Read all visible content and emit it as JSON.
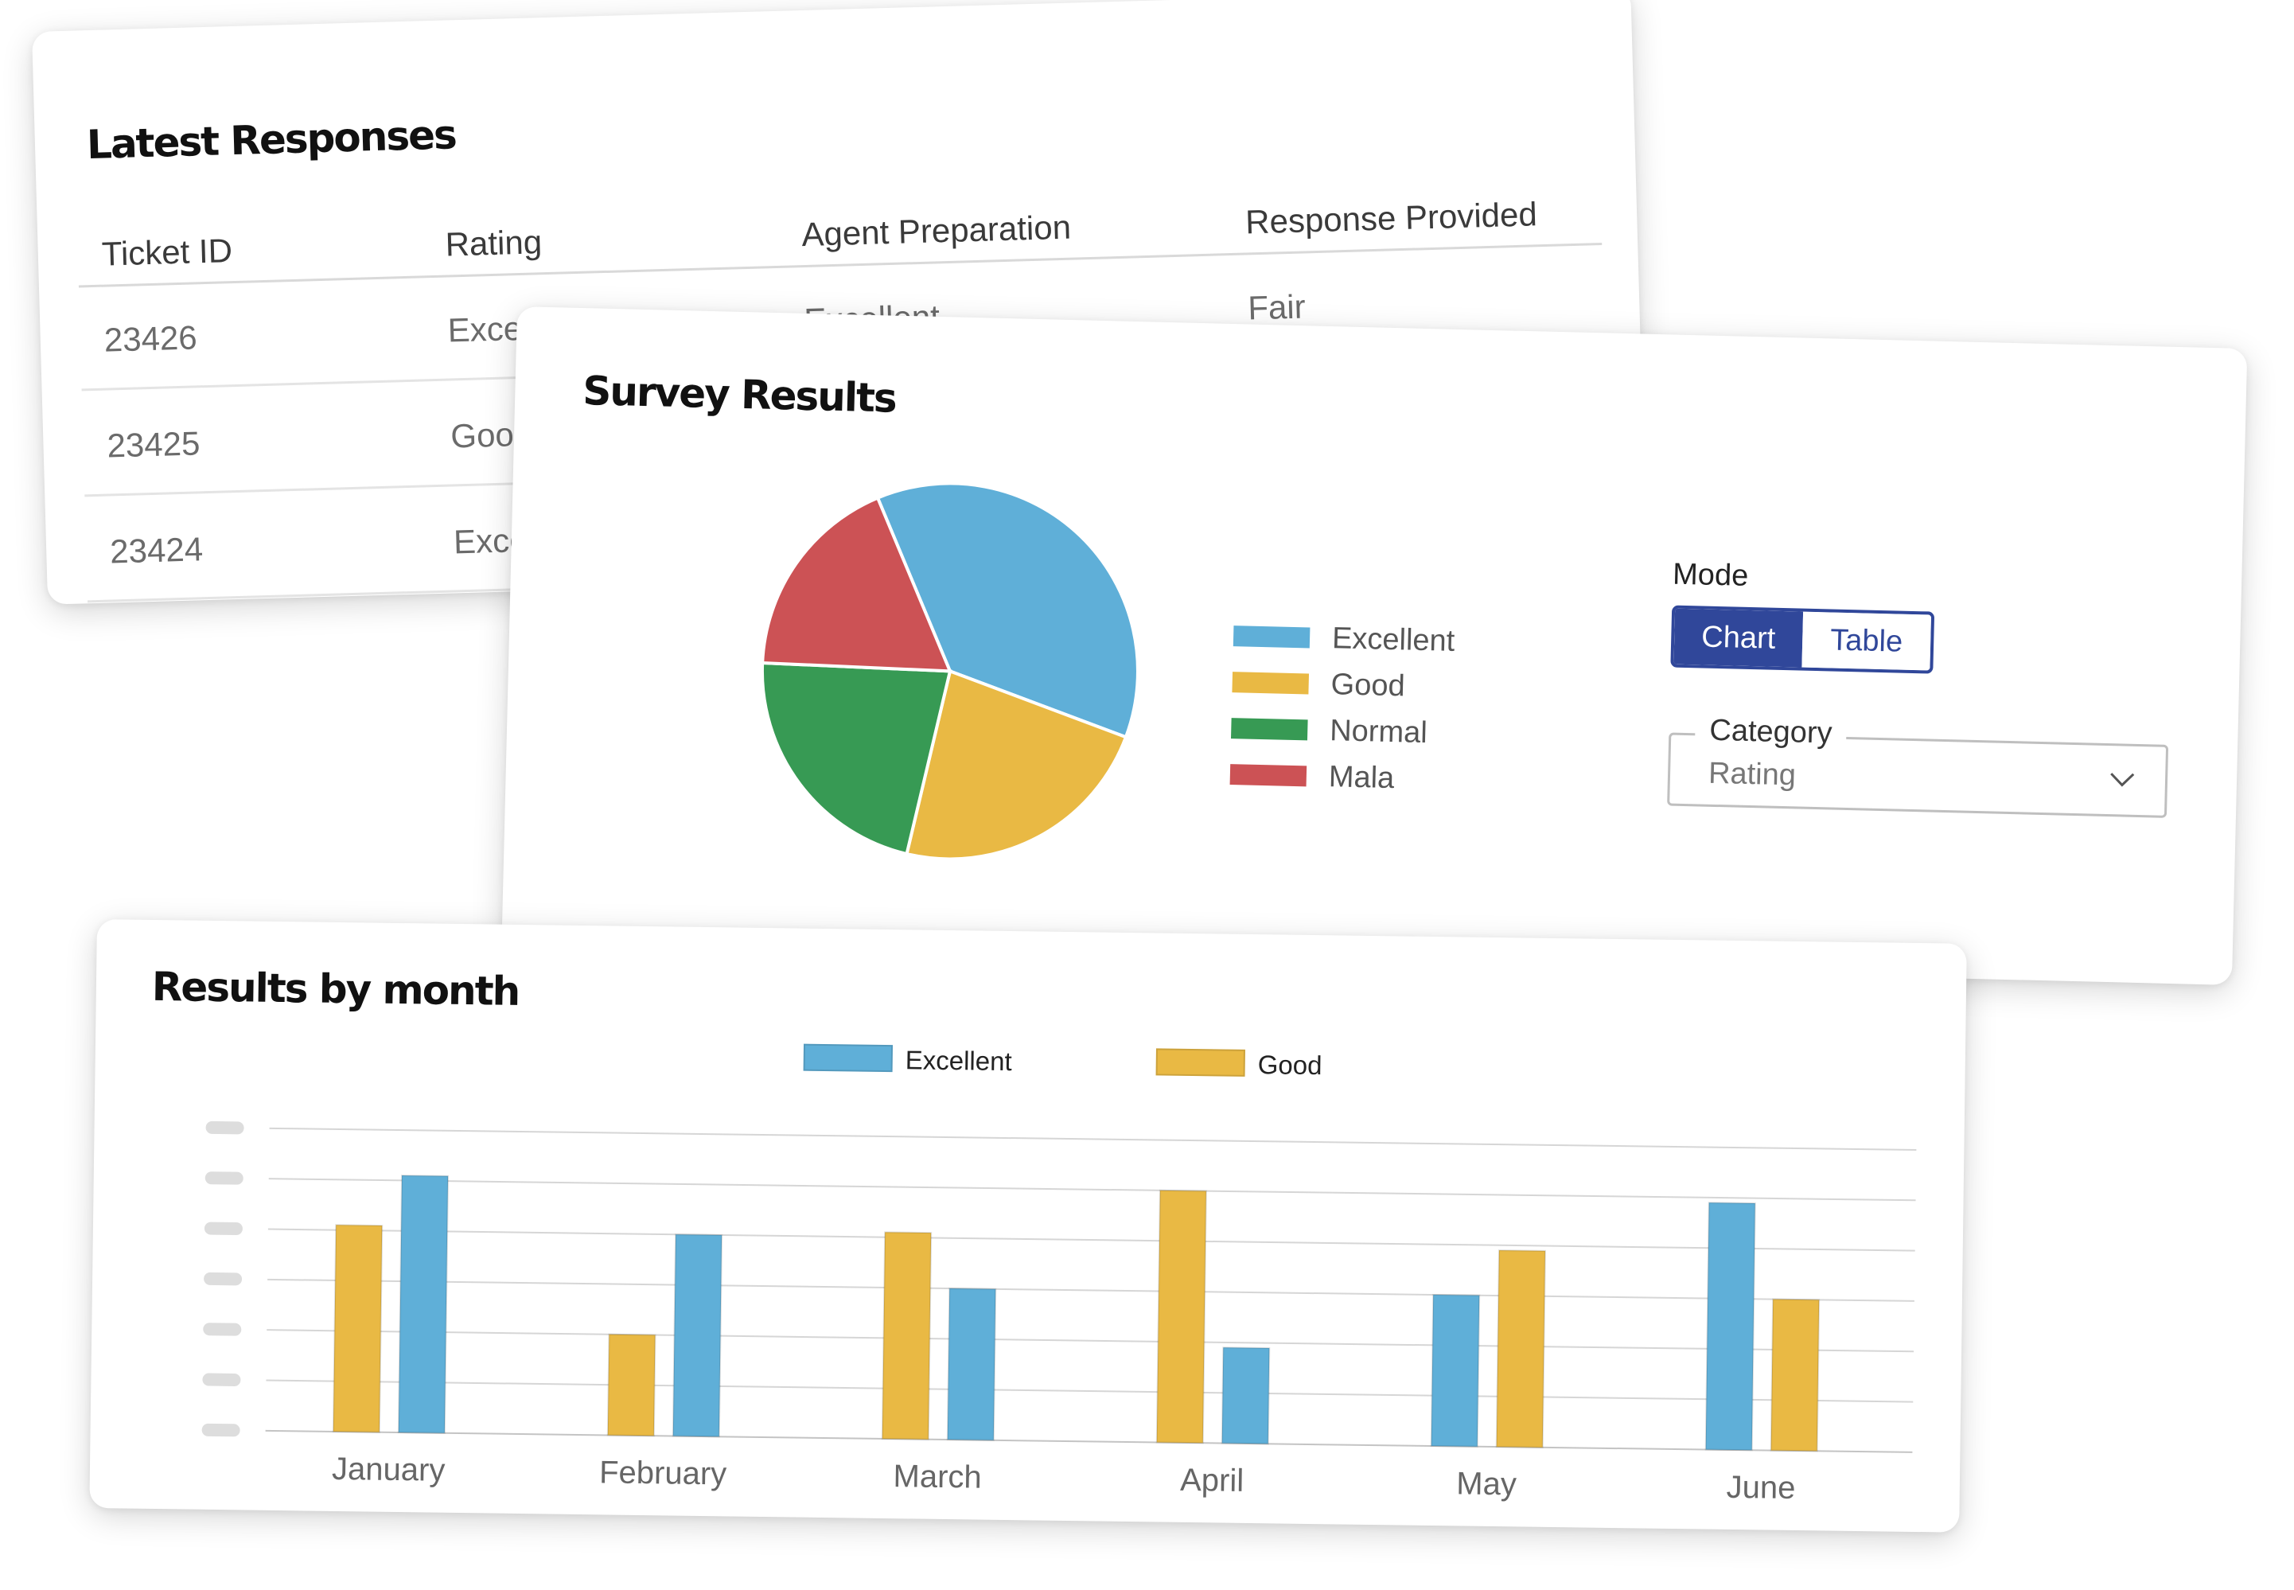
{
  "latest_responses": {
    "title": "Latest Responses",
    "columns": [
      "Ticket ID",
      "Rating",
      "Agent Preparation",
      "Response Provided"
    ],
    "rows": [
      [
        "23426",
        "Excellent",
        "Excellent",
        "Fair"
      ],
      [
        "23425",
        "Good",
        "",
        ""
      ],
      [
        "23424",
        "Excellent",
        "",
        ""
      ]
    ]
  },
  "survey_results": {
    "title": "Survey Results",
    "mode": {
      "label": "Mode",
      "options": [
        "Chart",
        "Table"
      ],
      "selected": "Chart"
    },
    "category": {
      "label": "Category",
      "value": "Rating",
      "icon": "chevron-down-icon"
    },
    "legend": [
      {
        "label": "Excellent",
        "color": "#5fafd8"
      },
      {
        "label": "Good",
        "color": "#e9b944"
      },
      {
        "label": "Normal",
        "color": "#379a54"
      },
      {
        "label": "Mala",
        "color": "#cc5255"
      }
    ]
  },
  "results_by_month": {
    "title": "Results by month",
    "legend": [
      {
        "label": "Excellent",
        "color": "#5fafd8"
      },
      {
        "label": "Good",
        "color": "#e9b944"
      }
    ]
  },
  "chart_data": [
    {
      "type": "pie",
      "labels": [
        "Excellent",
        "Good",
        "Normal",
        "Mala"
      ],
      "values": [
        37,
        23,
        22,
        18
      ],
      "colors": [
        "#5fafd8",
        "#e9b944",
        "#379a54",
        "#cc5255"
      ]
    },
    {
      "type": "bar",
      "categories": [
        "January",
        "February",
        "March",
        "April",
        "May",
        "June"
      ],
      "series": [
        {
          "name": "Good",
          "color": "#e9b944",
          "values": [
            4.1,
            2.0,
            4.1,
            5.0,
            3.9,
            3.0
          ]
        },
        {
          "name": "Excellent",
          "color": "#5fafd8",
          "values": [
            5.1,
            4.0,
            3.0,
            1.9,
            3.0,
            4.9
          ]
        }
      ],
      "bar_order_per_category": [
        [
          "Good",
          "Excellent"
        ],
        [
          "Good",
          "Excellent"
        ],
        [
          "Good",
          "Excellent"
        ],
        [
          "Good",
          "Excellent"
        ],
        [
          "Excellent",
          "Good"
        ],
        [
          "Excellent",
          "Good"
        ]
      ],
      "ylim": [
        0,
        6
      ],
      "y_tick_labels_redacted": true,
      "grid": true
    }
  ]
}
